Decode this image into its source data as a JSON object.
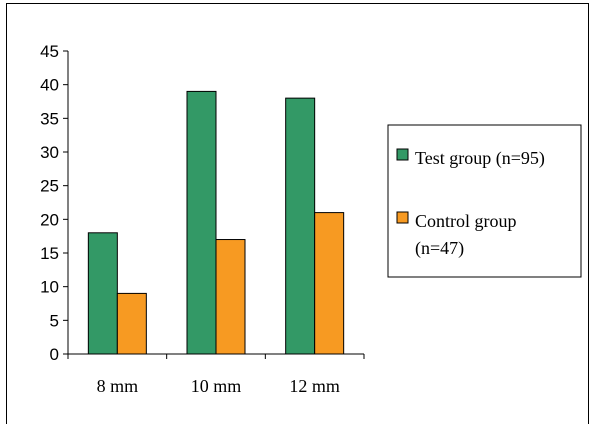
{
  "chart_data": {
    "type": "bar",
    "categories": [
      "8 mm",
      "10 mm",
      "12 mm"
    ],
    "series": [
      {
        "name": "Test group (n=95)",
        "legend_lines": [
          "Test group (n=95)"
        ],
        "values": [
          18,
          39,
          38
        ],
        "color": "#339966"
      },
      {
        "name": "Control group (n=47)",
        "legend_lines": [
          "Control group",
          "(n=47)"
        ],
        "values": [
          9,
          17,
          21
        ],
        "color": "#F79A22"
      }
    ],
    "ylim": [
      0,
      45
    ],
    "yticks": [
      0,
      5,
      10,
      15,
      20,
      25,
      30,
      35,
      40,
      45
    ],
    "grid": false,
    "legend_position": "right",
    "title": "",
    "xlabel": "",
    "ylabel": ""
  }
}
